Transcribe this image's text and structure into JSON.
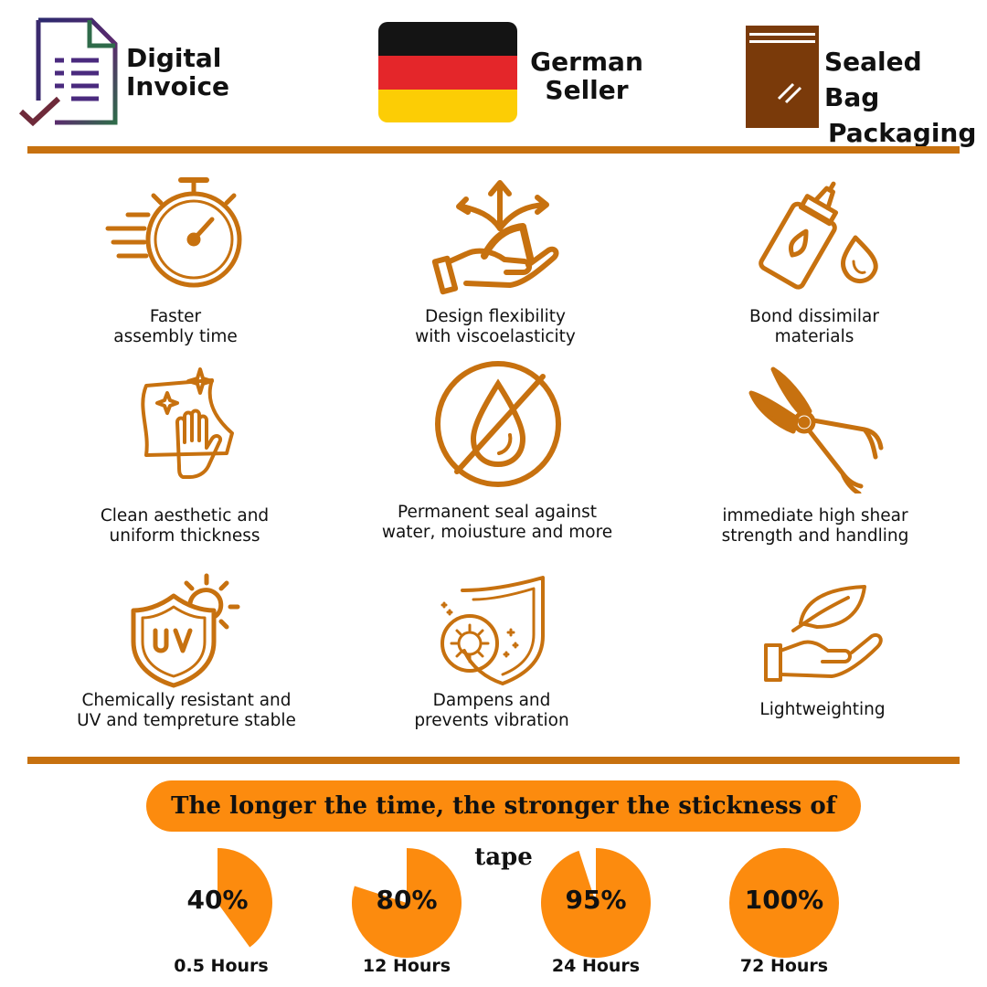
{
  "header": {
    "invoice": {
      "line1": "Digital",
      "line2": "Invoice"
    },
    "seller": {
      "line1": "German",
      "line2": "Seller"
    },
    "packaging": {
      "line1": "Sealed Bag",
      "line2": "Packaging"
    }
  },
  "features": [
    {
      "icon": "stopwatch-icon",
      "line1": "Faster",
      "line2": "assembly time"
    },
    {
      "icon": "flexible-hand-icon",
      "line1": "Design flexibility",
      "line2": "with viscoelasticity"
    },
    {
      "icon": "glue-bottle-icon",
      "line1": "Bond dissimilar",
      "line2": "materials"
    },
    {
      "icon": "cleaning-hand-icon",
      "line1": "Clean aesthetic and",
      "line2": "uniform thickness"
    },
    {
      "icon": "no-water-icon",
      "line1": "Permanent seal against",
      "line2": "water, moiusture and more"
    },
    {
      "icon": "pliers-icon",
      "line1": "immediate high shear",
      "line2": "strength and handling"
    },
    {
      "icon": "uv-shield-icon",
      "line1": "Chemically resistant and",
      "line2": "UV and tempreture stable"
    },
    {
      "icon": "vibration-shield-icon",
      "line1": "Dampens and",
      "line2": "prevents vibration"
    },
    {
      "icon": "leaf-hand-icon",
      "line1": "Lightweighting",
      "line2": ""
    }
  ],
  "banner": {
    "text": "The longer the time, the stronger the stickness of tape"
  },
  "colors": {
    "accent": "#c7710f",
    "banner": "#fc8b0e",
    "pie": "#fc8b0e",
    "brown": "#7a3a0a"
  },
  "chart_data": {
    "type": "pie",
    "items": [
      {
        "label": "40%",
        "value": 40,
        "time": "0.5 Hours"
      },
      {
        "label": "80%",
        "value": 80,
        "time": "12 Hours"
      },
      {
        "label": "95%",
        "value": 95,
        "time": "24 Hours"
      },
      {
        "label": "100%",
        "value": 100,
        "time": "72 Hours"
      }
    ]
  }
}
